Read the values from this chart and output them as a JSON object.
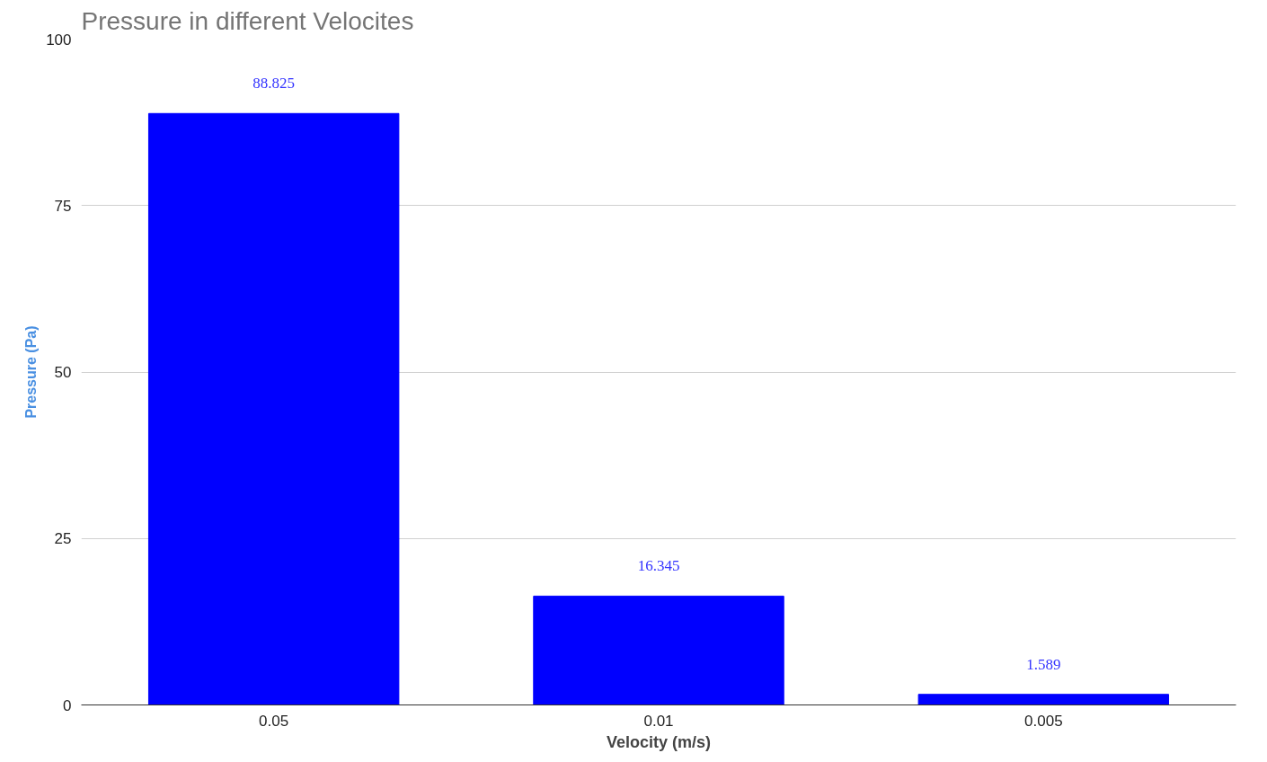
{
  "chart_data": {
    "type": "bar",
    "title": "Pressure in different Velocites",
    "xlabel": "Velocity (m/s)",
    "ylabel": "Pressure (Pa)",
    "categories": [
      "0.05",
      "0.01",
      "0.005"
    ],
    "values": [
      88.825,
      16.345,
      1.589
    ],
    "color": "#0000ff",
    "ylim": [
      0,
      100
    ],
    "yticks": [
      0,
      25,
      50,
      75,
      100
    ],
    "grid": "y",
    "data_labels": true
  }
}
